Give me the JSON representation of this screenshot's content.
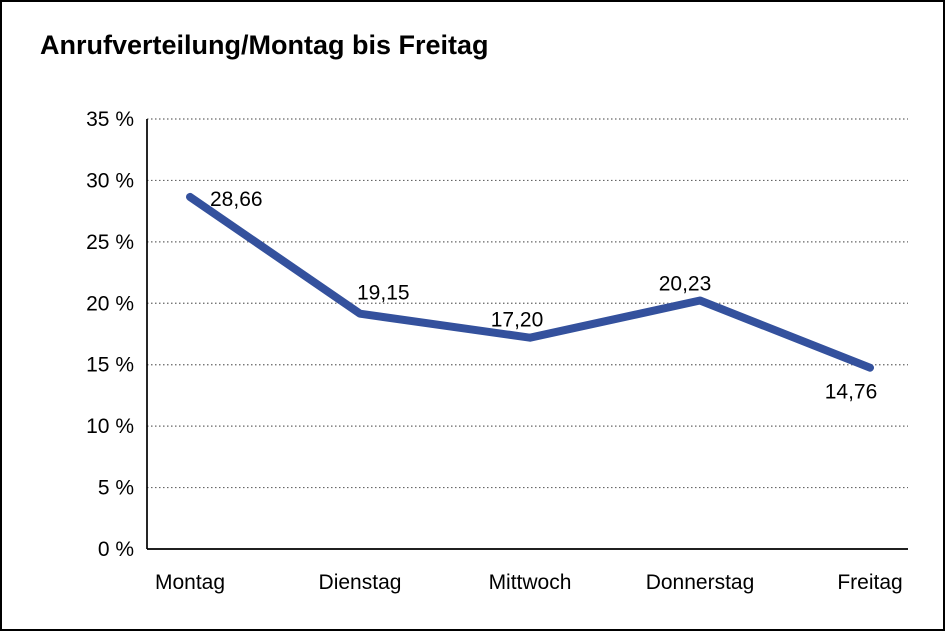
{
  "chart": {
    "title": "Anrufverteilung/Montag bis Freitag"
  },
  "chart_data": {
    "type": "line",
    "title": "Anrufverteilung/Montag bis Freitag",
    "categories": [
      "Montag",
      "Dienstag",
      "Mittwoch",
      "Donnerstag",
      "Freitag"
    ],
    "values": [
      28.66,
      19.15,
      17.2,
      20.23,
      14.76
    ],
    "point_labels": [
      "28,66",
      "19,15",
      "17,20",
      "20,23",
      "14,76"
    ],
    "xlabel": "",
    "ylabel": "",
    "ylim": [
      0,
      35
    ],
    "yticks": [
      0,
      5,
      10,
      15,
      20,
      25,
      30,
      35
    ],
    "ytick_labels": [
      "0 %",
      "5 %",
      "10 %",
      "15 %",
      "20 %",
      "25 %",
      "30 %",
      "35 %"
    ],
    "grid": "horizontal-dotted",
    "legend": "none",
    "colors": {
      "line": "#34519D",
      "axis": "#000000",
      "gridline": "#666666",
      "text": "#000000",
      "background": "#ffffff",
      "frame_border": "#000000"
    }
  }
}
